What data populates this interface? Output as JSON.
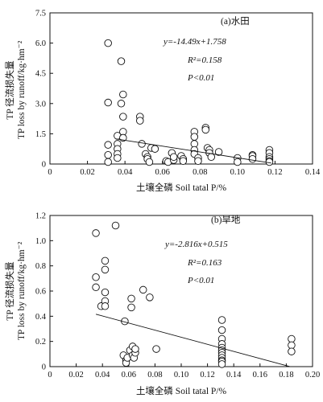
{
  "chart_data": [
    {
      "type": "scatter",
      "panel_label": "(a)水田",
      "xlabel": "土壤全磷 Soil tatal P/%",
      "ylabel_cn": "TP 径流损失量",
      "ylabel_en": "TP loss by runoff/kg·hm⁻²",
      "xlim": [
        0,
        0.14
      ],
      "ylim": [
        0,
        7.5
      ],
      "x_ticks": [
        "0",
        "0.02",
        "0.04",
        "0.06",
        "0.08",
        "0.10",
        "0.12",
        "0.14"
      ],
      "y_ticks": [
        "0",
        "1.5",
        "3.0",
        "4.5",
        "6.0",
        "7.5"
      ],
      "equation": "y=-14.49x+1.758",
      "r2": "R²=0.158",
      "p": "P<0.01",
      "trendline": {
        "slope": -14.49,
        "intercept": 1.758,
        "x_range": [
          0.035,
          0.118
        ]
      },
      "points": [
        [
          0.031,
          6.0
        ],
        [
          0.031,
          3.05
        ],
        [
          0.031,
          0.95
        ],
        [
          0.031,
          0.45
        ],
        [
          0.031,
          0.1
        ],
        [
          0.036,
          1.4
        ],
        [
          0.036,
          1.0
        ],
        [
          0.036,
          0.75
        ],
        [
          0.036,
          0.5
        ],
        [
          0.036,
          0.3
        ],
        [
          0.038,
          5.1
        ],
        [
          0.038,
          3.0
        ],
        [
          0.039,
          3.45
        ],
        [
          0.039,
          2.35
        ],
        [
          0.039,
          1.6
        ],
        [
          0.039,
          1.3
        ],
        [
          0.048,
          2.35
        ],
        [
          0.048,
          2.15
        ],
        [
          0.049,
          1.0
        ],
        [
          0.051,
          0.5
        ],
        [
          0.052,
          0.35
        ],
        [
          0.052,
          0.25
        ],
        [
          0.053,
          0.1
        ],
        [
          0.054,
          0.8
        ],
        [
          0.056,
          0.75
        ],
        [
          0.062,
          0.15
        ],
        [
          0.063,
          0.1
        ],
        [
          0.065,
          0.55
        ],
        [
          0.066,
          0.2
        ],
        [
          0.066,
          0.35
        ],
        [
          0.07,
          0.4
        ],
        [
          0.071,
          0.25
        ],
        [
          0.071,
          0.15
        ],
        [
          0.077,
          1.6
        ],
        [
          0.077,
          1.35
        ],
        [
          0.077,
          1.0
        ],
        [
          0.077,
          0.7
        ],
        [
          0.077,
          0.5
        ],
        [
          0.079,
          0.3
        ],
        [
          0.079,
          0.15
        ],
        [
          0.083,
          1.8
        ],
        [
          0.083,
          1.7
        ],
        [
          0.084,
          0.8
        ],
        [
          0.085,
          0.7
        ],
        [
          0.085,
          0.55
        ],
        [
          0.086,
          0.35
        ],
        [
          0.09,
          0.6
        ],
        [
          0.1,
          0.3
        ],
        [
          0.1,
          0.1
        ],
        [
          0.108,
          0.45
        ],
        [
          0.108,
          0.4
        ],
        [
          0.108,
          0.25
        ],
        [
          0.117,
          0.7
        ],
        [
          0.117,
          0.55
        ],
        [
          0.117,
          0.35
        ],
        [
          0.117,
          0.25
        ],
        [
          0.117,
          0.15
        ],
        [
          0.117,
          0.1
        ]
      ]
    },
    {
      "type": "scatter",
      "panel_label": "(b)旱地",
      "xlabel": "土壤全磷 Soil tatal P/%",
      "ylabel_cn": "TP 径流损失量",
      "ylabel_en": "TP loss by runoff/kg·hm⁻²",
      "xlim": [
        0,
        0.2
      ],
      "ylim": [
        0,
        1.2
      ],
      "x_ticks": [
        "0",
        "0.02",
        "0.04",
        "0.06",
        "0.08",
        "0.10",
        "0.12",
        "0.14",
        "0.16",
        "0.18",
        "0.20"
      ],
      "y_ticks": [
        "0",
        "0.2",
        "0.4",
        "0.6",
        "0.8",
        "1.0",
        "1.2"
      ],
      "equation": "y=-2.816x+0.515",
      "r2": "R²=0.163",
      "p": "P<0.01",
      "trendline": {
        "slope": -2.816,
        "intercept": 0.515,
        "x_range": [
          0.035,
          0.183
        ]
      },
      "points": [
        [
          0.035,
          1.06
        ],
        [
          0.035,
          0.71
        ],
        [
          0.035,
          0.63
        ],
        [
          0.039,
          0.48
        ],
        [
          0.042,
          0.84
        ],
        [
          0.042,
          0.77
        ],
        [
          0.042,
          0.59
        ],
        [
          0.042,
          0.52
        ],
        [
          0.042,
          0.48
        ],
        [
          0.05,
          1.12
        ],
        [
          0.056,
          0.09
        ],
        [
          0.057,
          0.36
        ],
        [
          0.058,
          0.05
        ],
        [
          0.058,
          0.03
        ],
        [
          0.059,
          0.07
        ],
        [
          0.061,
          0.13
        ],
        [
          0.062,
          0.54
        ],
        [
          0.062,
          0.47
        ],
        [
          0.063,
          0.16
        ],
        [
          0.063,
          0.09
        ],
        [
          0.064,
          0.07
        ],
        [
          0.065,
          0.11
        ],
        [
          0.065,
          0.14
        ],
        [
          0.071,
          0.61
        ],
        [
          0.076,
          0.55
        ],
        [
          0.081,
          0.14
        ],
        [
          0.131,
          0.37
        ],
        [
          0.131,
          0.29
        ],
        [
          0.131,
          0.22
        ],
        [
          0.131,
          0.18
        ],
        [
          0.131,
          0.15
        ],
        [
          0.131,
          0.13
        ],
        [
          0.131,
          0.11
        ],
        [
          0.131,
          0.09
        ],
        [
          0.131,
          0.07
        ],
        [
          0.131,
          0.05
        ],
        [
          0.131,
          0.04
        ],
        [
          0.131,
          0.02
        ],
        [
          0.184,
          0.22
        ],
        [
          0.184,
          0.17
        ],
        [
          0.184,
          0.12
        ]
      ]
    }
  ]
}
